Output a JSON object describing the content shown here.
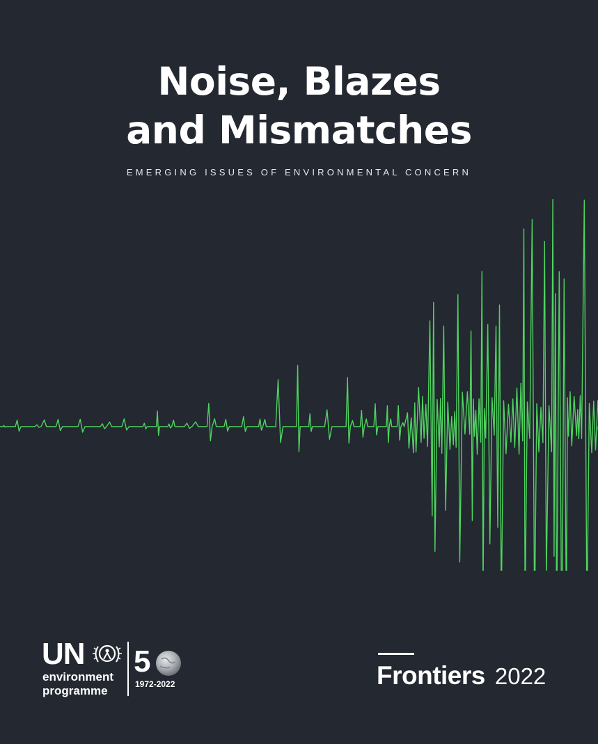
{
  "title": {
    "line1": "Noise, Blazes",
    "line2": "and Mismatches"
  },
  "subtitle": "EMERGING ISSUES OF ENVIRONMENTAL CONCERN",
  "logo": {
    "un": "UN",
    "org_line1": "environment",
    "org_line2": "programme",
    "anniversary": "5",
    "years": "1972-2022"
  },
  "series": {
    "name": "Frontiers",
    "year": "2022"
  },
  "colors": {
    "background": "#232831",
    "waveform": "#4fd35f",
    "text": "#ffffff"
  }
}
